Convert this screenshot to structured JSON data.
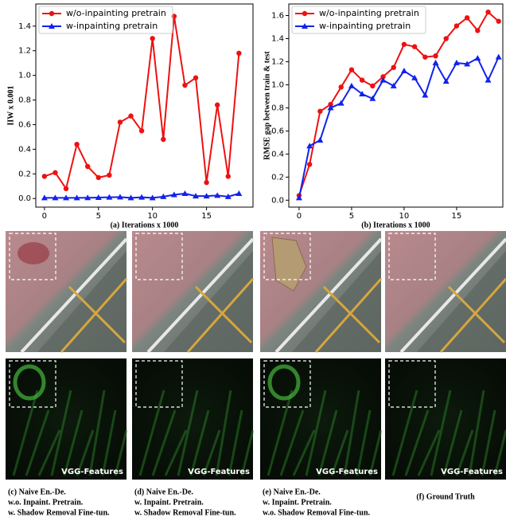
{
  "chart_data": [
    {
      "type": "line",
      "ylabel": "IIW x 0.001",
      "xlabel": "(a) Iterations x 1000",
      "x": [
        0,
        1,
        2,
        3,
        4,
        5,
        6,
        7,
        8,
        9,
        10,
        11,
        12,
        13,
        14,
        15,
        16,
        17,
        18
      ],
      "series": [
        {
          "name": "w/o-inpainting pretrain",
          "color": "#ee1111",
          "marker": "circle",
          "values": [
            0.18,
            0.21,
            0.08,
            0.44,
            0.26,
            0.17,
            0.19,
            0.62,
            0.67,
            0.55,
            1.3,
            0.48,
            1.48,
            0.92,
            0.98,
            0.13,
            0.76,
            0.18,
            1.18
          ]
        },
        {
          "name": "w-inpainting pretrain",
          "color": "#1122ee",
          "marker": "triangle",
          "values": [
            0.005,
            0.005,
            0.005,
            0.005,
            0.006,
            0.008,
            0.01,
            0.012,
            0.005,
            0.01,
            0.005,
            0.015,
            0.03,
            0.04,
            0.02,
            0.02,
            0.025,
            0.015,
            0.04
          ]
        }
      ],
      "xlim": [
        -0.8,
        19.3
      ],
      "ylim": [
        -0.07,
        1.58
      ],
      "xticks": [
        0,
        5,
        10,
        15
      ],
      "yticks": [
        {
          "value": 0,
          "label": "0.0"
        },
        0.2,
        0.4,
        0.6,
        0.8,
        {
          "value": 1,
          "label": "1.0"
        },
        1.2,
        1.4
      ],
      "legend": "upper left"
    },
    {
      "type": "line",
      "ylabel": "RMSE gap between train & test",
      "xlabel": "(b) Iterations x 1000",
      "x": [
        0,
        1,
        2,
        3,
        4,
        5,
        6,
        7,
        8,
        9,
        10,
        11,
        12,
        13,
        14,
        15,
        16,
        17,
        18,
        19
      ],
      "series": [
        {
          "name": "w/o-inpainting pretrain",
          "color": "#ee1111",
          "marker": "circle",
          "values": [
            0.04,
            0.31,
            0.77,
            0.83,
            0.98,
            1.13,
            1.04,
            0.99,
            1.07,
            1.15,
            1.35,
            1.33,
            1.24,
            1.25,
            1.4,
            1.51,
            1.58,
            1.47,
            1.63,
            1.55
          ]
        },
        {
          "name": "w-inpainting pretrain",
          "color": "#1122ee",
          "marker": "triangle",
          "values": [
            0.02,
            0.47,
            0.52,
            0.8,
            0.84,
            0.99,
            0.92,
            0.88,
            1.04,
            0.99,
            1.12,
            1.06,
            0.91,
            1.19,
            1.03,
            1.19,
            1.18,
            1.23,
            1.04,
            1.24
          ]
        }
      ],
      "xlim": [
        -0.98,
        19.4
      ],
      "ylim": [
        -0.06,
        1.7
      ],
      "xticks": [
        0,
        5,
        10,
        15
      ],
      "yticks": [
        {
          "value": 0,
          "label": "0.0"
        },
        0.2,
        0.4,
        0.6,
        0.8,
        {
          "value": 1,
          "label": "1.0"
        },
        1.2,
        1.4,
        1.6
      ],
      "legend": "upper left"
    }
  ],
  "panels": [
    {
      "feature_label": "VGG-Features",
      "caption": [
        "(c) Naive En.-De.",
        "w.o. Inpaint. Pretrain.",
        "w. Shadow Removal Fine-tun."
      ]
    },
    {
      "feature_label": "VGG-Features",
      "caption": [
        "(d) Naive En.-De.",
        "w. Inpaint. Pretrain.",
        "w. Shadow Removal Fine-tun."
      ]
    },
    {
      "feature_label": "VGG-Features",
      "caption": [
        "(e) Naive En.-De.",
        "w. Inpaint. Pretrain.",
        "w.o. Shadow Removal Fine-tun."
      ]
    },
    {
      "feature_label": "VGG-Features",
      "caption": [
        "(f) Ground Truth"
      ]
    }
  ]
}
